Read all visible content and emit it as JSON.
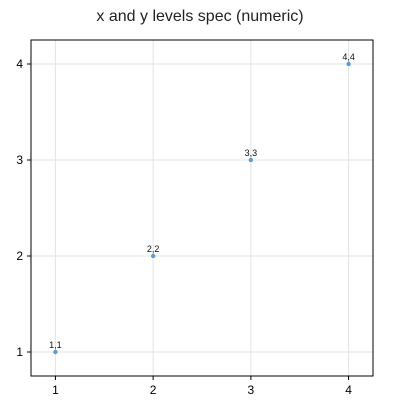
{
  "chart_data": {
    "type": "scatter",
    "title": "x and y levels spec (numeric)",
    "xlabel": "",
    "ylabel": "",
    "x_ticks": [
      1,
      2,
      3,
      4
    ],
    "y_ticks": [
      1,
      2,
      3,
      4
    ],
    "xlim": [
      0.75,
      4.25
    ],
    "ylim": [
      0.75,
      4.25
    ],
    "grid": true,
    "point_color": "#5b9bd5",
    "grid_color": "#e3e3e3",
    "points": [
      {
        "x": 1,
        "y": 1,
        "label": "1,1"
      },
      {
        "x": 2,
        "y": 2,
        "label": "2,2"
      },
      {
        "x": 3,
        "y": 3,
        "label": "3,3"
      },
      {
        "x": 4,
        "y": 4,
        "label": "4,4"
      }
    ]
  }
}
